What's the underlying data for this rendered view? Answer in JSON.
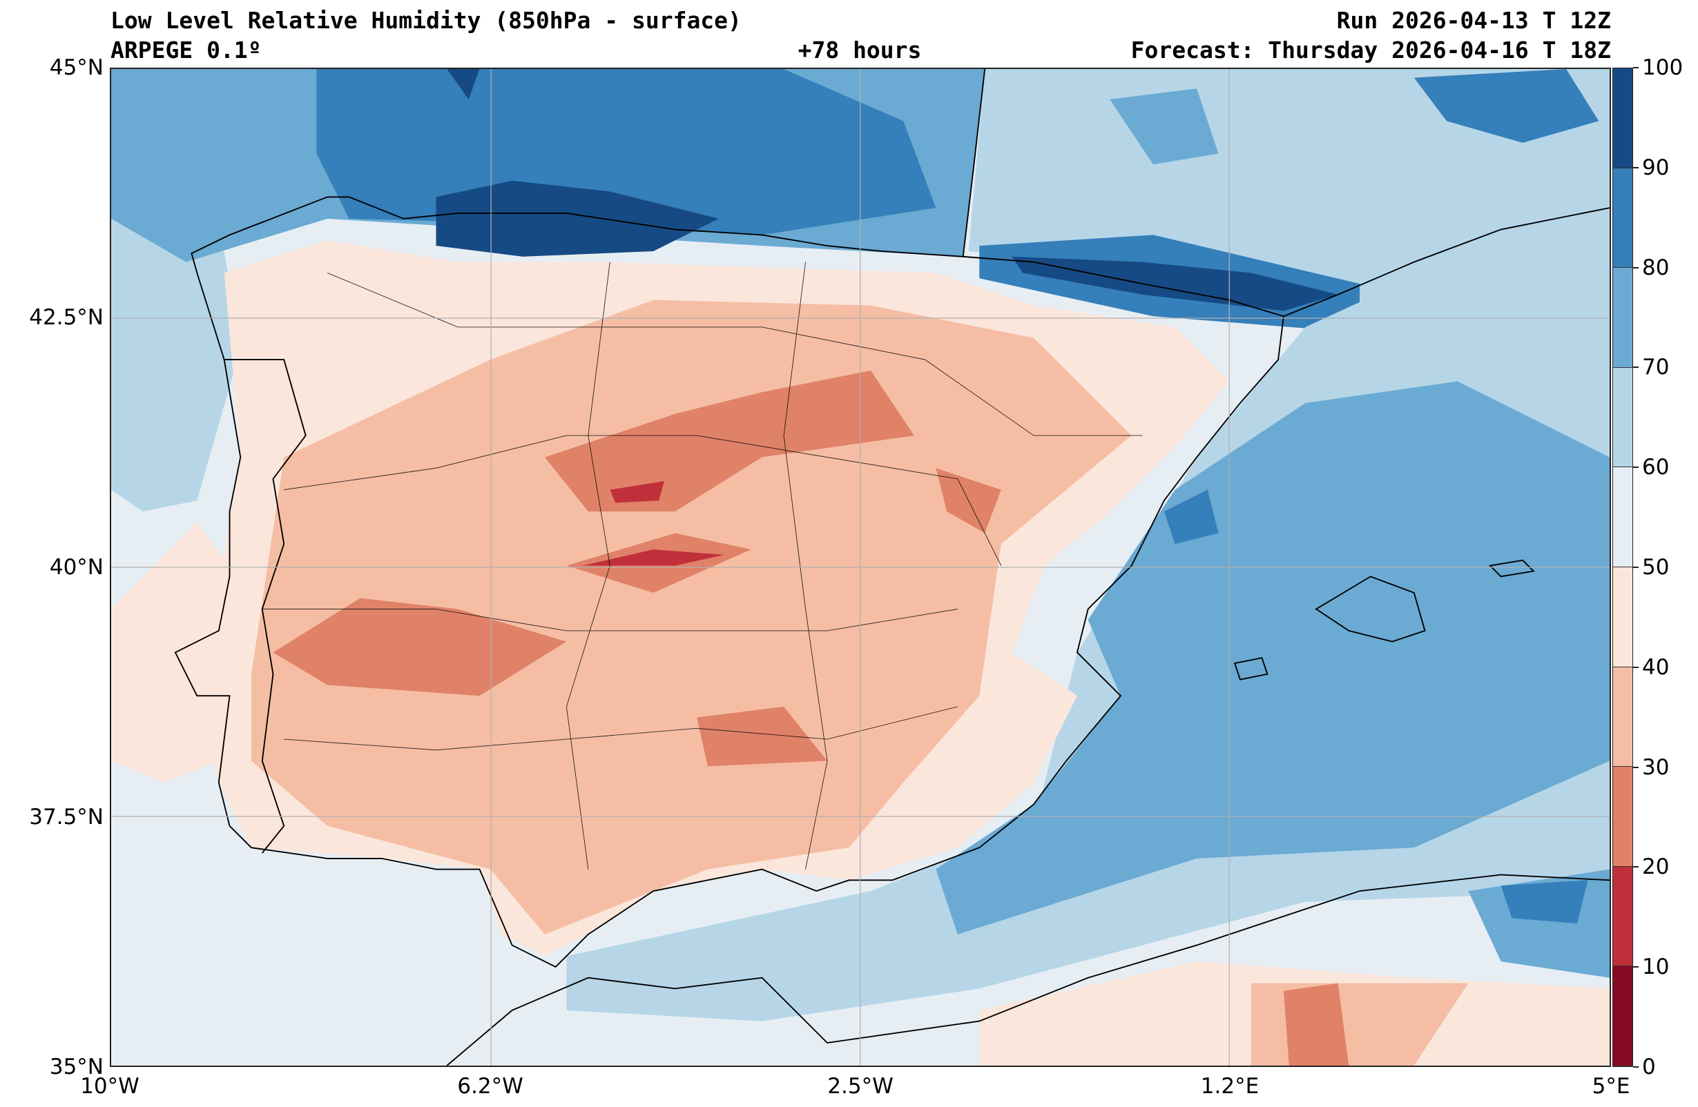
{
  "header": {
    "title": "Low Level Relative Humidity (850hPa - surface)",
    "run": "Run 2026-04-13 T 12Z",
    "model": "ARPEGE 0.1º",
    "lead": "+78 hours",
    "forecast": "Forecast: Thursday 2026-04-16 T 18Z"
  },
  "chart_data": {
    "type": "heatmap",
    "title": "Low Level Relative Humidity (850hPa - surface)",
    "region": "Iberian Peninsula",
    "lon_range": [
      -10,
      5
    ],
    "lat_range": [
      35,
      45
    ],
    "x_ticks": [
      "10°W",
      "6.2°W",
      "2.5°W",
      "1.2°E",
      "5°E"
    ],
    "y_ticks": [
      "45°N",
      "42.5°N",
      "40°N",
      "37.5°N",
      "35°N"
    ],
    "grid": true,
    "colorbar": {
      "levels": [
        0,
        10,
        20,
        30,
        40,
        50,
        60,
        70,
        80,
        90,
        100
      ],
      "labels": [
        "0",
        "10",
        "20",
        "30",
        "40",
        "50",
        "60",
        "70",
        "80",
        "90",
        "100"
      ],
      "colors": [
        "#870a24",
        "#c0303a",
        "#e08268",
        "#f5bea4",
        "#fbe6dc",
        "#e6eef4",
        "#b6d6e8",
        "#6aaad3",
        "#357fba",
        "#164a84"
      ],
      "placement": "right"
    }
  }
}
